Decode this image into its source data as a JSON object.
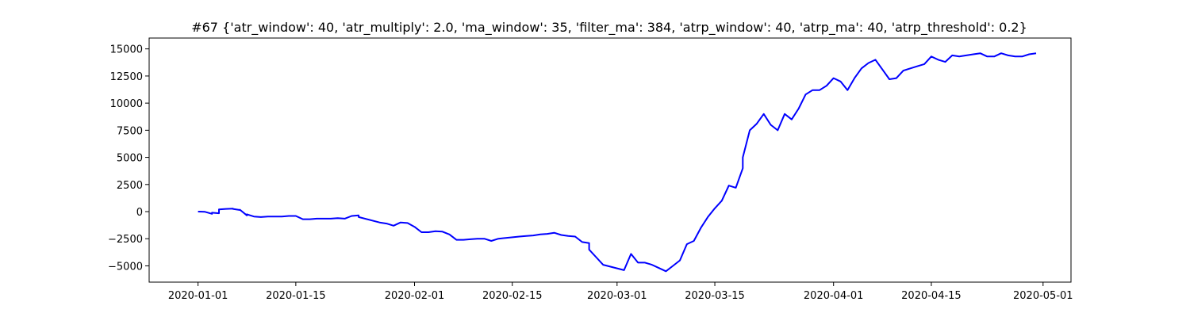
{
  "chart_data": {
    "type": "line",
    "title": "#67 {'atr_window': 40, 'atr_multiply': 2.0, 'ma_window': 35, 'filter_ma': 384, 'atrp_window': 40, 'atrp_ma': 40, 'atrp_threshold': 0.2}",
    "xlabel": "",
    "ylabel": "",
    "grid": false,
    "line_color": "#0000ff",
    "xlim": [
      "2019-12-25",
      "2020-05-05"
    ],
    "ylim": [
      -6500,
      16000
    ],
    "x_ticks": [
      "2020-01-01",
      "2020-01-15",
      "2020-02-01",
      "2020-02-15",
      "2020-03-01",
      "2020-03-15",
      "2020-04-01",
      "2020-04-15",
      "2020-05-01"
    ],
    "y_ticks": [
      -5000,
      -2500,
      0,
      2500,
      5000,
      7500,
      10000,
      12500,
      15000
    ],
    "y_tick_labels": [
      "−5000",
      "−2500",
      "0",
      "2500",
      "5000",
      "7500",
      "10000",
      "12500",
      "15000"
    ],
    "series": [
      {
        "x": [
          "2020-01-01",
          "2020-01-02",
          "2020-01-03",
          "2020-01-03",
          "2020-01-04",
          "2020-01-04",
          "2020-01-05",
          "2020-01-06",
          "2020-01-06",
          "2020-01-07",
          "2020-01-07",
          "2020-01-08",
          "2020-01-08",
          "2020-01-08",
          "2020-01-09",
          "2020-01-10",
          "2020-01-11",
          "2020-01-13",
          "2020-01-14",
          "2020-01-15",
          "2020-01-16",
          "2020-01-17",
          "2020-01-18",
          "2020-01-19",
          "2020-01-20",
          "2020-01-21",
          "2020-01-22",
          "2020-01-23",
          "2020-01-24",
          "2020-01-24",
          "2020-01-27",
          "2020-01-28",
          "2020-01-29",
          "2020-01-30",
          "2020-01-31",
          "2020-02-01",
          "2020-02-02",
          "2020-02-03",
          "2020-02-04",
          "2020-02-05",
          "2020-02-06",
          "2020-02-07",
          "2020-02-08",
          "2020-02-09",
          "2020-02-10",
          "2020-02-11",
          "2020-02-12",
          "2020-02-13",
          "2020-02-16",
          "2020-02-17",
          "2020-02-18",
          "2020-02-19",
          "2020-02-20",
          "2020-02-21",
          "2020-02-22",
          "2020-02-23",
          "2020-02-24",
          "2020-02-25",
          "2020-02-26",
          "2020-02-26",
          "2020-02-27",
          "2020-02-28",
          "2020-03-02",
          "2020-03-03",
          "2020-03-04",
          "2020-03-05",
          "2020-03-06",
          "2020-03-07",
          "2020-03-08",
          "2020-03-09",
          "2020-03-10",
          "2020-03-11",
          "2020-03-12",
          "2020-03-13",
          "2020-03-14",
          "2020-03-15",
          "2020-03-16",
          "2020-03-17",
          "2020-03-18",
          "2020-03-19",
          "2020-03-19",
          "2020-03-20",
          "2020-03-21",
          "2020-03-22",
          "2020-03-23",
          "2020-03-24",
          "2020-03-25",
          "2020-03-26",
          "2020-03-27",
          "2020-03-28",
          "2020-03-29",
          "2020-03-30",
          "2020-03-31",
          "2020-04-01",
          "2020-04-02",
          "2020-04-03",
          "2020-04-04",
          "2020-04-05",
          "2020-04-06",
          "2020-04-07",
          "2020-04-08",
          "2020-04-09",
          "2020-04-10",
          "2020-04-11",
          "2020-04-12",
          "2020-04-13",
          "2020-04-14",
          "2020-04-15",
          "2020-04-16",
          "2020-04-17",
          "2020-04-18",
          "2020-04-19",
          "2020-04-20",
          "2020-04-21",
          "2020-04-22",
          "2020-04-23",
          "2020-04-24",
          "2020-04-25",
          "2020-04-26",
          "2020-04-27",
          "2020-04-28",
          "2020-04-29",
          "2020-04-30"
        ],
        "y": [
          0,
          -20,
          -200,
          -100,
          -150,
          200,
          250,
          280,
          250,
          150,
          180,
          -350,
          -300,
          -250,
          -450,
          -500,
          -450,
          -450,
          -400,
          -400,
          -700,
          -700,
          -650,
          -650,
          -650,
          -600,
          -650,
          -400,
          -350,
          -500,
          -1000,
          -1100,
          -1300,
          -1000,
          -1050,
          -1400,
          -1900,
          -1900,
          -1800,
          -1850,
          -2100,
          -2600,
          -2600,
          -2550,
          -2500,
          -2500,
          -2700,
          -2500,
          -2300,
          -2250,
          -2200,
          -2100,
          -2050,
          -1950,
          -2150,
          -2250,
          -2300,
          -2800,
          -2900,
          -3500,
          -4200,
          -4900,
          -5400,
          -3900,
          -4700,
          -4700,
          -4900,
          -5200,
          -5500,
          -5000,
          -4500,
          -3000,
          -2700,
          -1500,
          -500,
          300,
          1000,
          2400,
          2200,
          4000,
          5000,
          7500,
          8100,
          9000,
          8000,
          7500,
          9000,
          8500,
          9500,
          10800,
          11200,
          11200,
          11600,
          12300,
          12000,
          11200,
          12300,
          13200,
          13700,
          14000,
          13100,
          12200,
          12300,
          13000,
          13200,
          13400,
          13600,
          14300,
          14000,
          13800,
          14400,
          14300,
          14400,
          14500,
          14600,
          14300,
          14300,
          14600,
          14400,
          14300,
          14300,
          14500,
          14600
        ]
      }
    ]
  }
}
